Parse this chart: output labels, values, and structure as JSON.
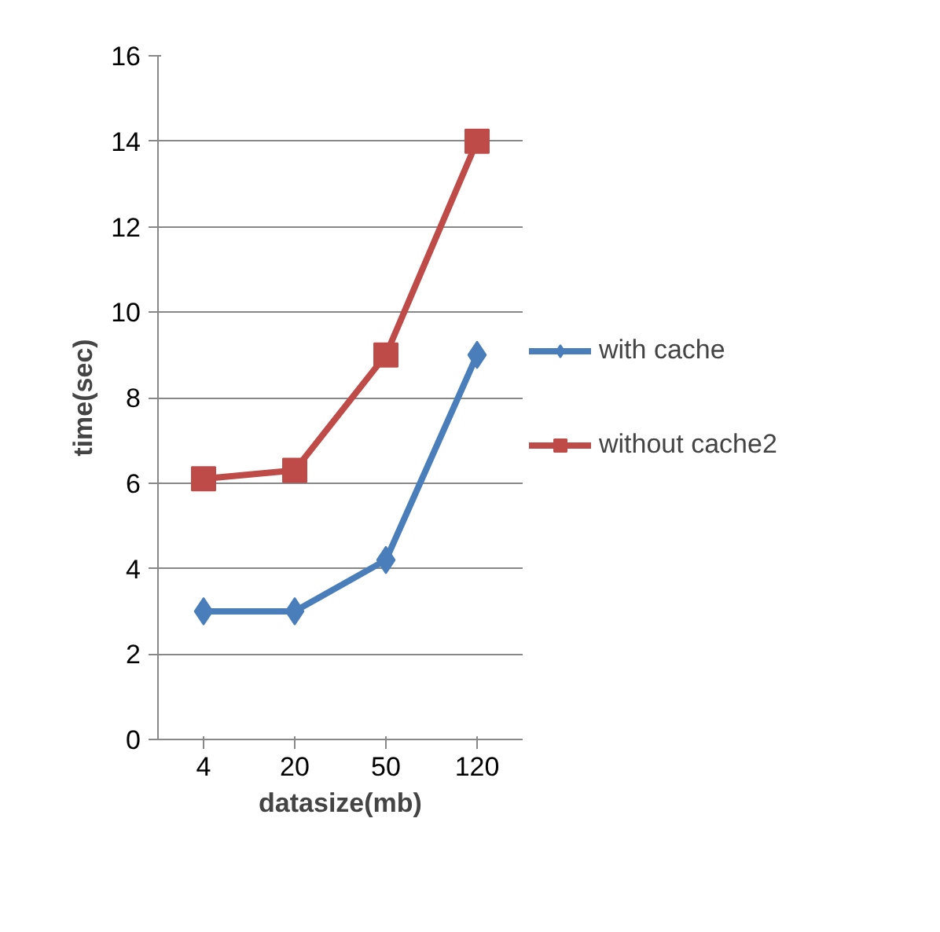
{
  "chart_data": {
    "type": "line",
    "xlabel": "datasize(mb)",
    "ylabel": "time(sec)",
    "categories": [
      "4",
      "20",
      "50",
      "120"
    ],
    "series": [
      {
        "name": "with cache",
        "color": "#4a7ebb",
        "marker": "diamond",
        "values": [
          3,
          3,
          4.2,
          9
        ]
      },
      {
        "name": "without cache2",
        "color": "#be4b48",
        "marker": "square",
        "values": [
          6.1,
          6.3,
          9,
          14
        ]
      }
    ],
    "ylim": [
      0,
      16
    ],
    "yticks": [
      0,
      2,
      4,
      6,
      8,
      10,
      12,
      14,
      16
    ],
    "grid": "y",
    "legend": "right"
  }
}
